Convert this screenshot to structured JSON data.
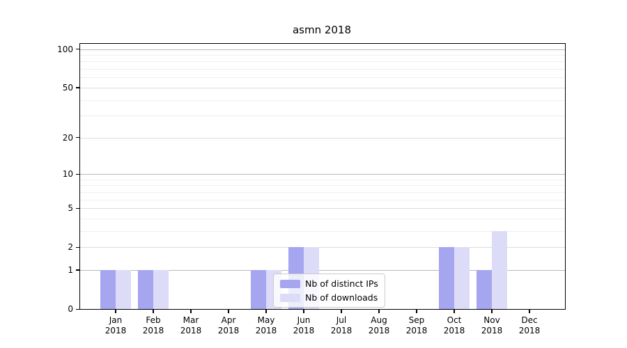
{
  "chart_data": {
    "type": "bar",
    "title": "asmn 2018",
    "categories": [
      "Jan 2018",
      "Feb 2018",
      "Mar 2018",
      "Apr 2018",
      "May 2018",
      "Jun 2018",
      "Jul 2018",
      "Aug 2018",
      "Sep 2018",
      "Oct 2018",
      "Nov 2018",
      "Dec 2018"
    ],
    "series": [
      {
        "name": "Nb of distinct IPs",
        "color": "#a5a5f0",
        "values": [
          1,
          1,
          0,
          0,
          1,
          2,
          0,
          0,
          0,
          2,
          1,
          0
        ]
      },
      {
        "name": "Nb of downloads",
        "color": "#dcdcf9",
        "values": [
          1,
          1,
          0,
          0,
          1,
          2,
          0,
          0,
          0,
          2,
          3,
          0
        ]
      }
    ],
    "xlabel": "",
    "ylabel": "",
    "yscale": "log1p",
    "ylim": [
      0,
      110
    ],
    "y_ticks": [
      0,
      1,
      2,
      5,
      10,
      20,
      50,
      100
    ],
    "y_minor_gridlines": [
      3,
      4,
      6,
      7,
      8,
      9,
      30,
      40,
      60,
      70,
      80,
      90
    ],
    "grid": "on",
    "legend_position": "lower center inside plot",
    "colors": {
      "grid_decade": "#b9b9b9",
      "grid_major": "#dddddd",
      "grid_minor": "#efefef",
      "spine": "#000000",
      "text": "#000000",
      "legend_border": "#cbcbcb",
      "legend_background": "rgba(255,255,255,0.8)"
    }
  }
}
